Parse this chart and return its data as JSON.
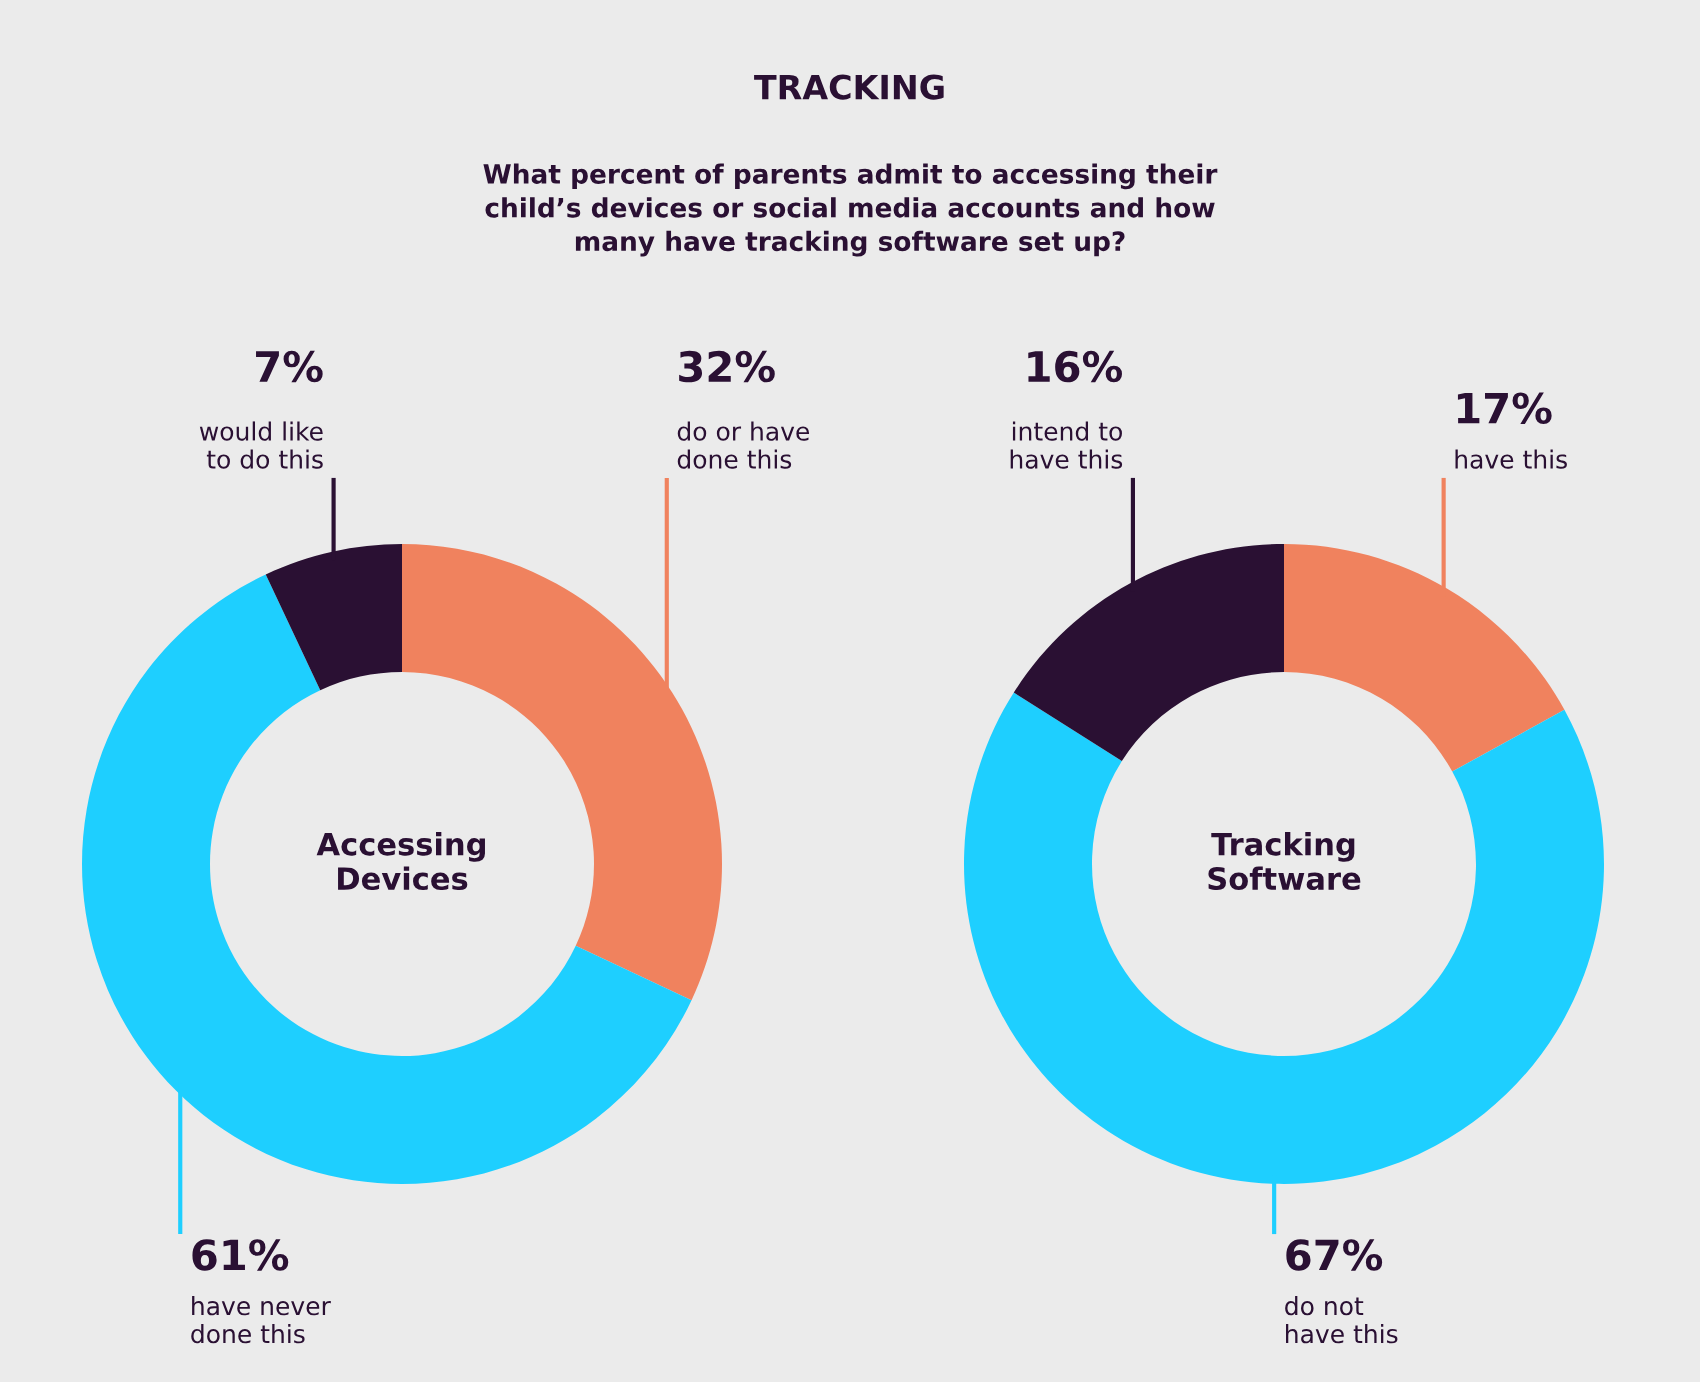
{
  "chart_data": [
    {
      "type": "donut",
      "title": "TRACKING",
      "subtitle": "What percent of parents admit to accessing their\nchild’s devices or social media accounts and how\nmany have tracking software set up?",
      "annotations": [
        "Accessing\nDevices"
      ],
      "categories": [
        "do or have\ndone this",
        "have never\ndone this",
        "would like\nto do this"
      ],
      "values": [
        32,
        61,
        7
      ],
      "value_labels": [
        "32%",
        "61%",
        "7%"
      ],
      "colors": [
        "#f0825e",
        "#1ecfff",
        "#2a1033"
      ]
    },
    {
      "type": "donut",
      "annotations": [
        "Tracking\nSoftware"
      ],
      "categories": [
        "have this",
        "do not\nhave this",
        "intend to\nhave this"
      ],
      "values": [
        17,
        67,
        16
      ],
      "value_labels": [
        "17%",
        "67%",
        "16%"
      ],
      "colors": [
        "#f0825e",
        "#1ecfff",
        "#2a1033"
      ]
    }
  ]
}
